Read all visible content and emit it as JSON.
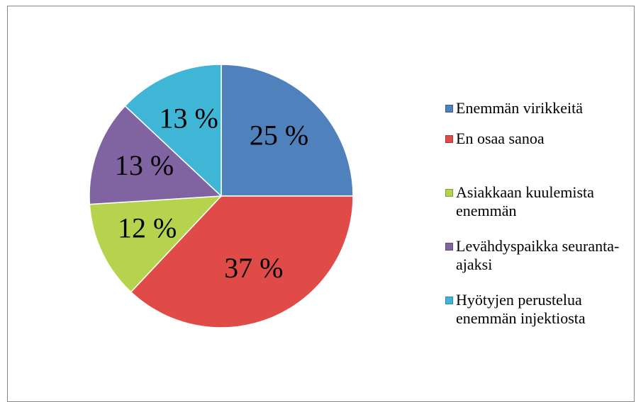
{
  "chart_data": {
    "type": "pie",
    "categories": [
      "Enemmän virikkeitä",
      "En osaa sanoa",
      "Asiakkaan kuulemista enemmän",
      "Levähdyspaikka seuranta-ajaksi",
      "Hyötyjen perustelua enemmän injektiosta"
    ],
    "values": [
      25,
      37,
      12,
      13,
      13
    ],
    "value_labels": [
      "25 %",
      "37 %",
      "12 %",
      "13 %",
      "13 %"
    ],
    "colors": [
      "#4f81bd",
      "#e04b47",
      "#b5d34c",
      "#8064a2",
      "#3fb6d6"
    ],
    "legend": "right"
  }
}
